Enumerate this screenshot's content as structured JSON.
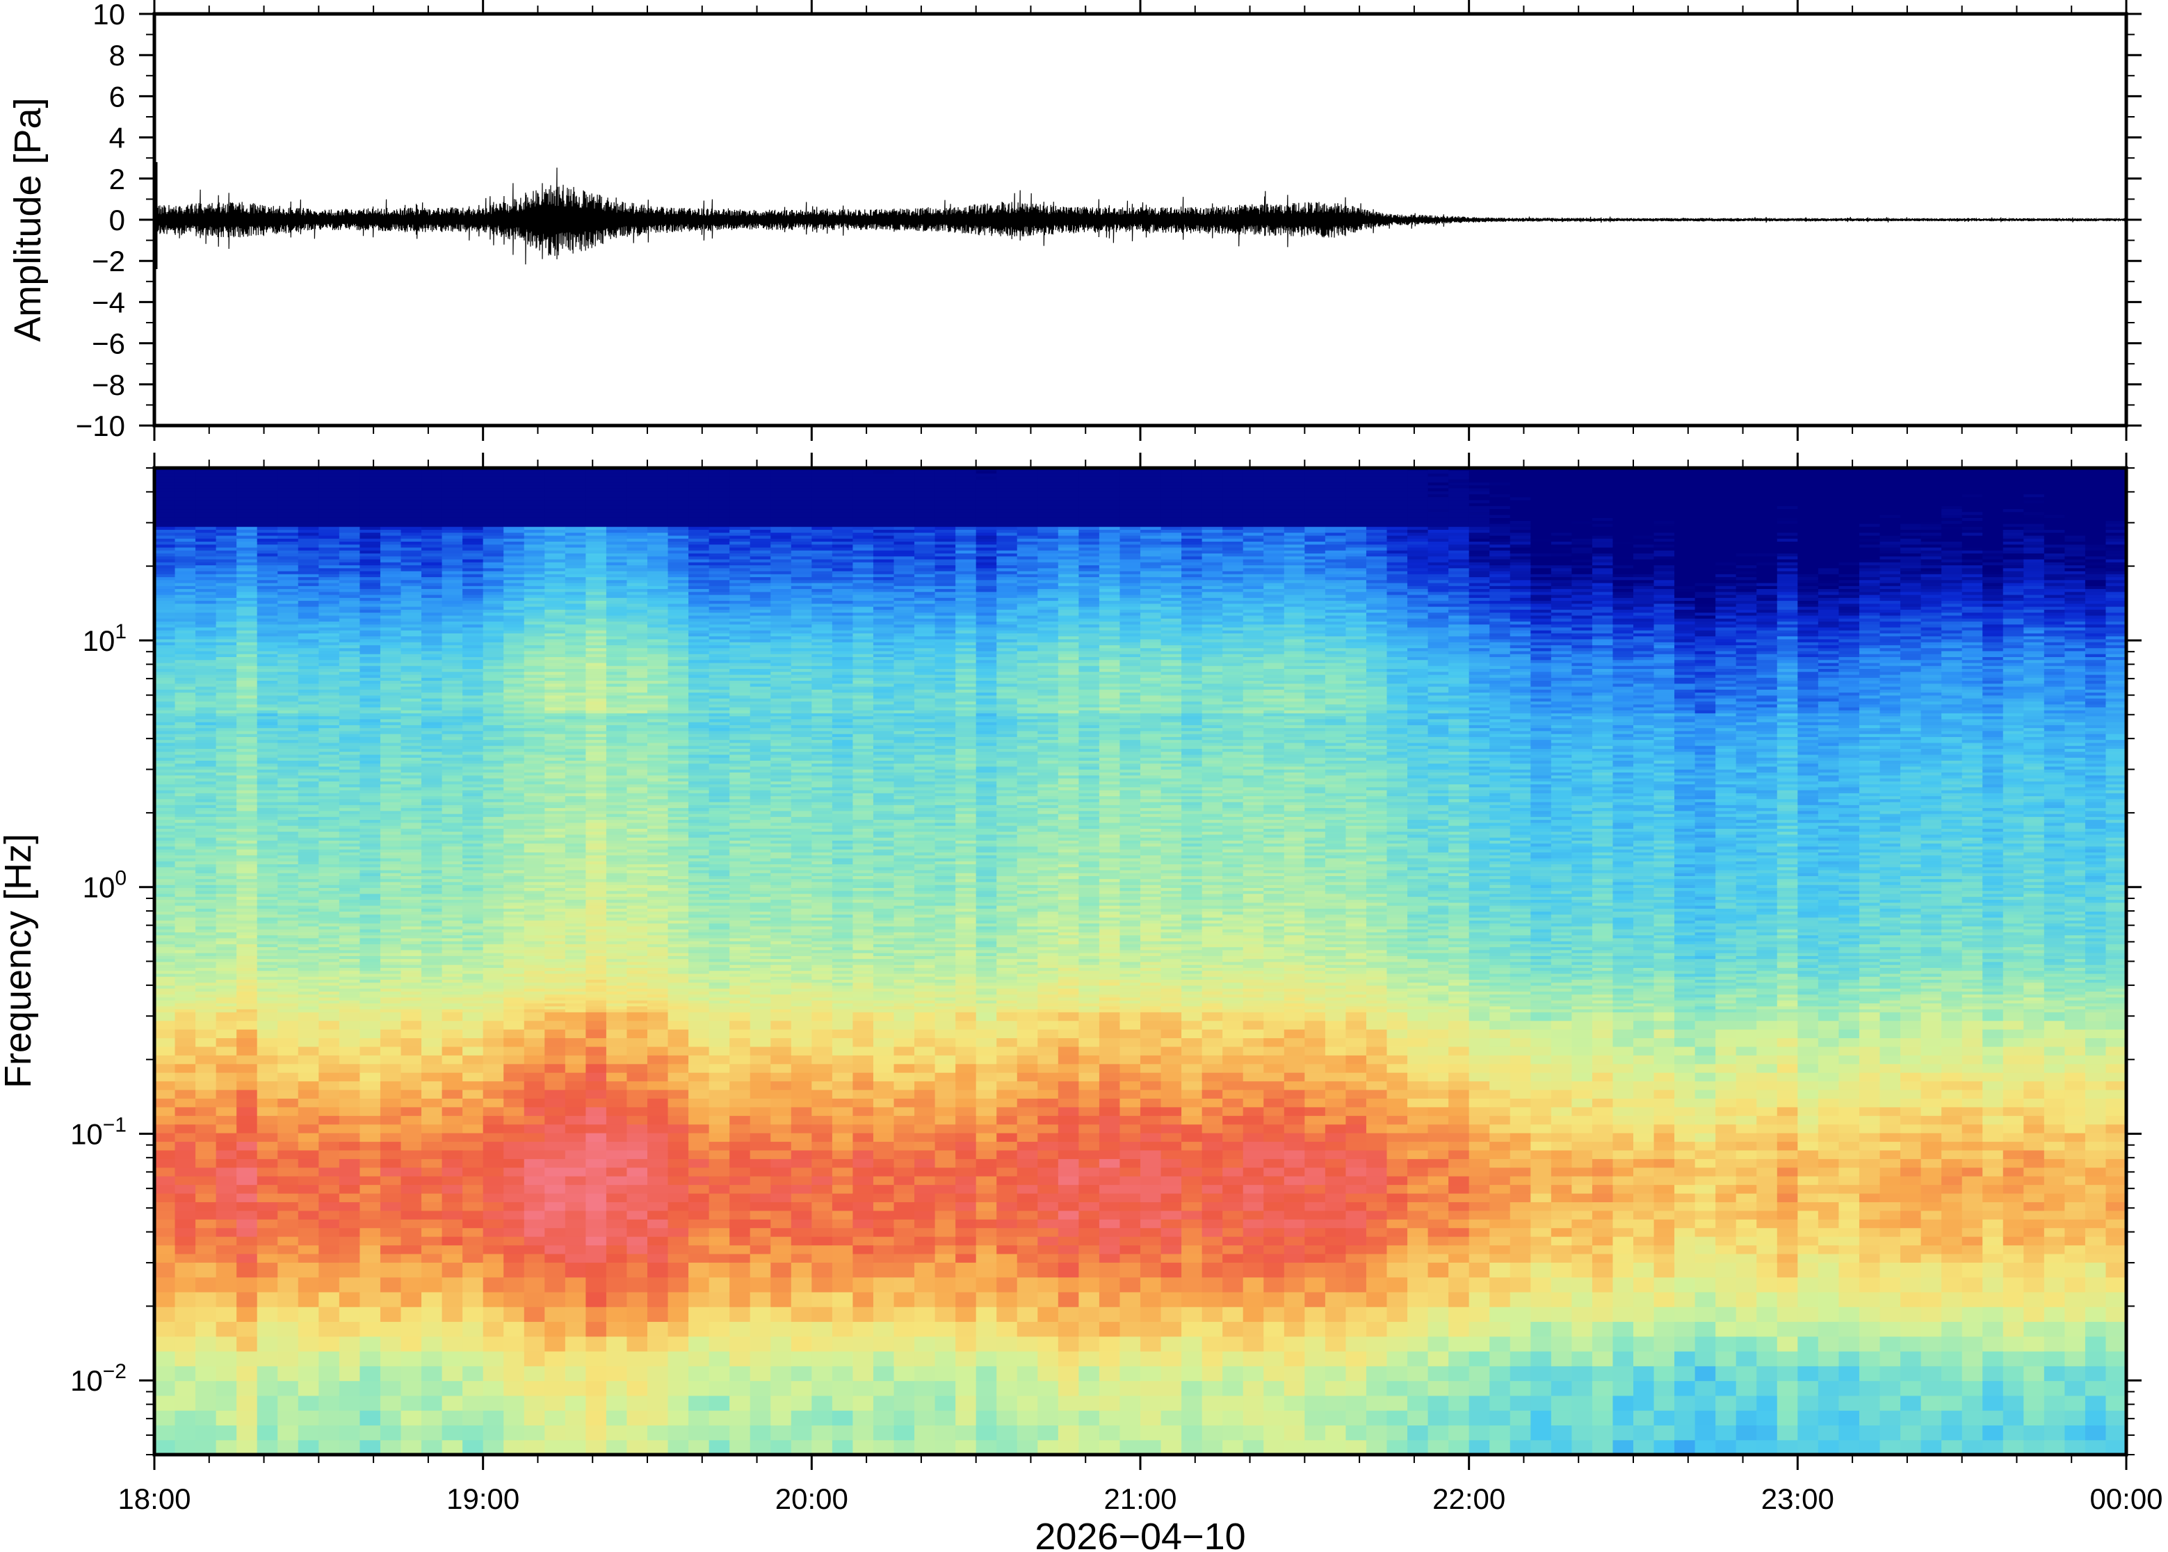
{
  "chart_data": [
    {
      "type": "line",
      "title": "",
      "ylabel": "Amplitude [Pa]",
      "ylim": [
        -10,
        10
      ],
      "yticks": [
        -10,
        -8,
        -6,
        -4,
        -2,
        0,
        2,
        4,
        6,
        8,
        10
      ],
      "ytick_labels": [
        "−10",
        "−8",
        "−6",
        "−4",
        "−2",
        "0",
        "2",
        "4",
        "6",
        "8",
        "10"
      ],
      "x_range": [
        "18:00",
        "00:00"
      ],
      "grid": false,
      "series": [
        {
          "color": "#000000",
          "envelope_x": [
            "18:00",
            "18:15",
            "18:30",
            "18:45",
            "19:00",
            "19:07",
            "19:12",
            "19:18",
            "19:25",
            "19:35",
            "19:50",
            "20:10",
            "20:25",
            "20:35",
            "20:45",
            "21:00",
            "21:15",
            "21:25",
            "21:35",
            "21:45",
            "21:55",
            "22:05",
            "22:30",
            "23:00",
            "23:30",
            "00:00"
          ],
          "envelope_amplitude": [
            0.7,
            0.9,
            0.5,
            0.6,
            0.6,
            1.1,
            1.8,
            1.6,
            0.9,
            0.6,
            0.5,
            0.5,
            0.6,
            0.9,
            0.7,
            0.6,
            0.7,
            0.8,
            0.9,
            0.3,
            0.2,
            0.1,
            0.08,
            0.08,
            0.07,
            0.07
          ]
        }
      ]
    },
    {
      "type": "heatmap",
      "title": "",
      "ylabel": "Frequency [Hz]",
      "xlabel": "2026−04−10",
      "y_scale": "log",
      "ylim": [
        0.005,
        50
      ],
      "yticks": [
        0.01,
        0.1,
        1,
        10
      ],
      "ytick_labels": [
        {
          "base": "10",
          "exp": "−2"
        },
        {
          "base": "10",
          "exp": "−1"
        },
        {
          "base": "10",
          "exp": "0"
        },
        {
          "base": "10",
          "exp": "1"
        }
      ],
      "x_ticks": [
        "18:00",
        "19:00",
        "20:00",
        "21:00",
        "22:00",
        "23:00",
        "00:00"
      ],
      "colormap": [
        "#000080",
        "#0a28d2",
        "#2a8cf5",
        "#48c8f0",
        "#88e6c4",
        "#d2f29a",
        "#f6e47a",
        "#f8a84e",
        "#ee5a44",
        "#f47a86"
      ],
      "times": [
        "18:00",
        "18:15",
        "18:30",
        "18:45",
        "19:00",
        "19:10",
        "19:20",
        "19:30",
        "19:45",
        "20:00",
        "20:15",
        "20:30",
        "20:45",
        "21:00",
        "21:15",
        "21:25",
        "21:35",
        "21:45",
        "22:00",
        "22:15",
        "22:30",
        "22:45",
        "23:00",
        "23:15",
        "23:30",
        "23:45",
        "00:00"
      ],
      "activity": [
        0.6,
        0.7,
        0.55,
        0.55,
        0.6,
        0.85,
        1.0,
        0.75,
        0.5,
        0.55,
        0.5,
        0.55,
        0.75,
        0.7,
        0.65,
        0.7,
        0.75,
        0.45,
        0.35,
        0.12,
        0.06,
        0.02,
        0.05,
        0.1,
        0.12,
        0.14,
        0.15
      ],
      "power_level_by_frequency": {
        "0.006": 0.45,
        "0.01": 0.5,
        "0.02": 0.7,
        "0.04": 0.82,
        "0.07": 0.84,
        "0.12": 0.75,
        "0.25": 0.62,
        "0.5": 0.48,
        "1": 0.43,
        "3": 0.38,
        "8": 0.3,
        "20": 0.1,
        "50": 0.0
      }
    }
  ]
}
